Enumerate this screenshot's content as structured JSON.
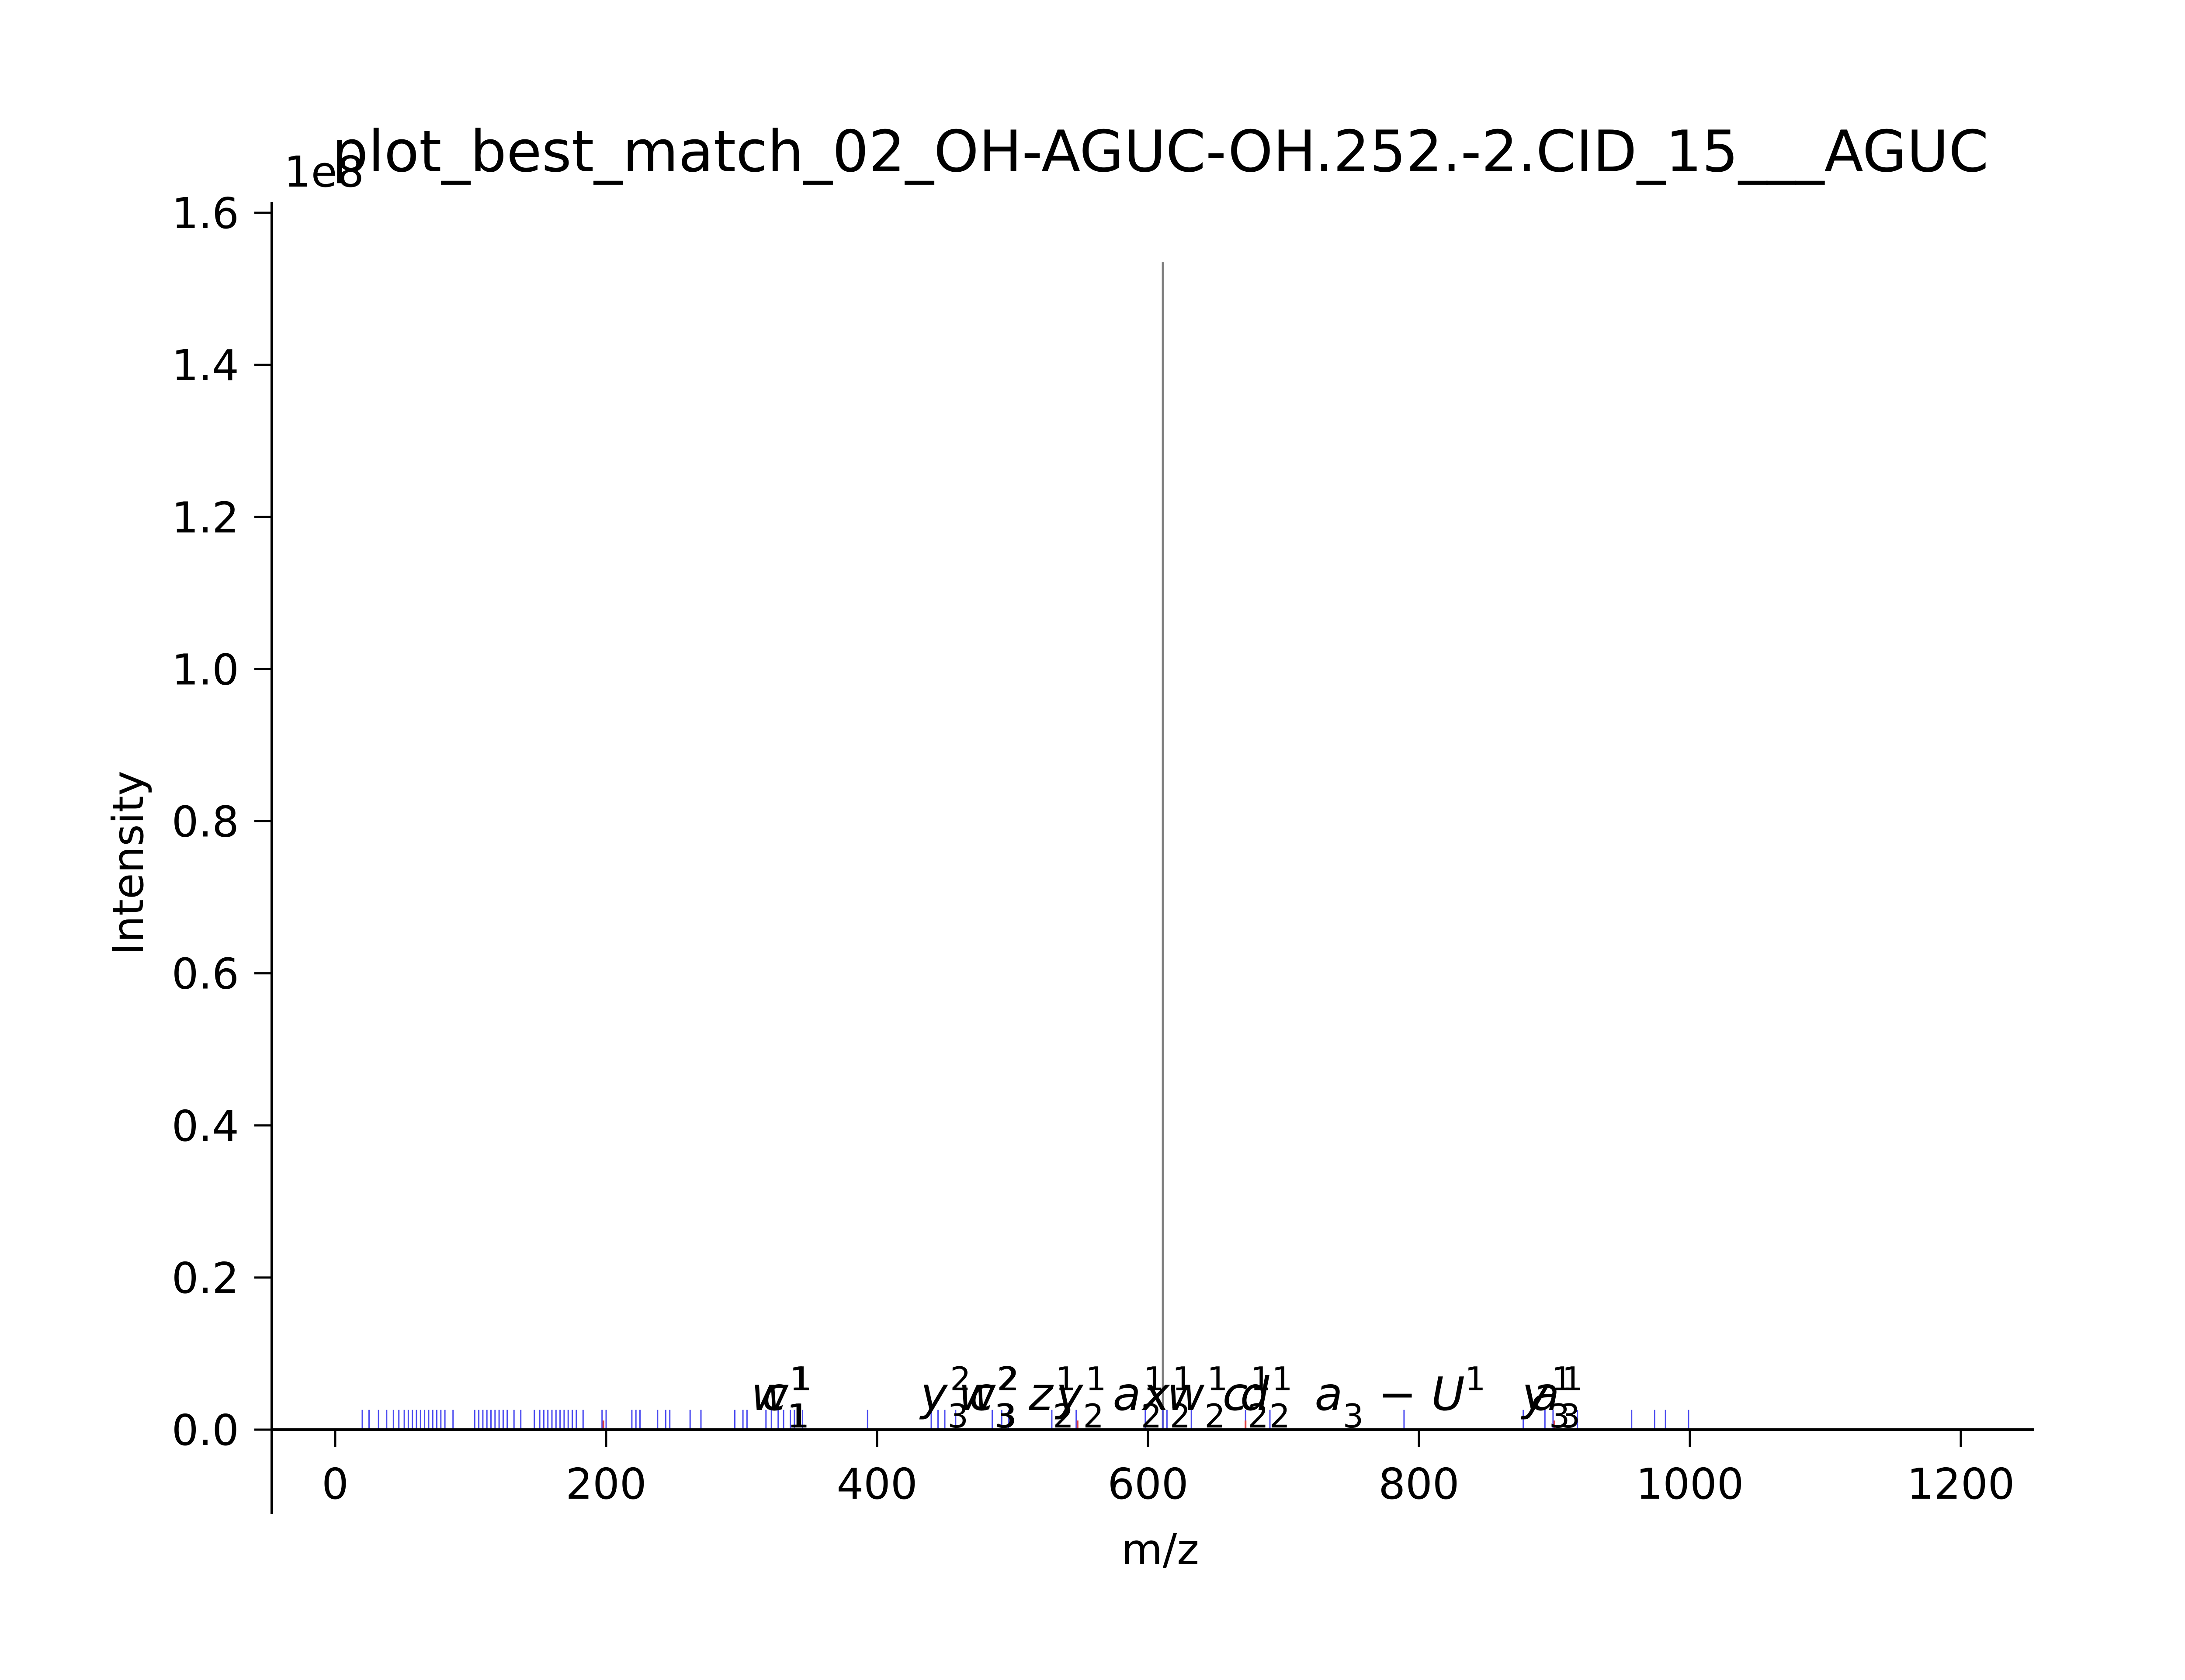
{
  "chart_data": {
    "type": "bar",
    "title": "plot_best_match_02_OH-AGUC-OH.252.-2.CID_15___AGUC",
    "xlabel": "m/z",
    "ylabel": "Intensity",
    "y_offset_label": "1e8",
    "xlim": [
      -50,
      1260
    ],
    "ylim": [
      0,
      1.6
    ],
    "x_ticks": [
      0,
      200,
      400,
      600,
      800,
      1000,
      1200
    ],
    "x_tick_labels": [
      "0",
      "200",
      "400",
      "600",
      "800",
      "1000",
      "1200"
    ],
    "y_ticks": [
      0.0,
      0.2,
      0.4,
      0.6,
      0.8,
      1.0,
      1.2,
      1.4,
      1.6
    ],
    "y_tick_labels": [
      "0.0",
      "0.2",
      "0.4",
      "0.6",
      "0.8",
      "1.0",
      "1.2",
      "1.4",
      "1.6"
    ],
    "grid": false,
    "colors": {
      "precursor": "#808080",
      "theoretical": "#4b4bf0",
      "matched": "#e03c3c",
      "axis": "#000000"
    },
    "series": [
      {
        "name": "",
        "kind": "observed-precursor",
        "x": [
          611.0
        ],
        "values": [
          1.535
        ]
      },
      {
        "name": "",
        "kind": "theoretical-fragments",
        "x": [
          20,
          25,
          32,
          38,
          43,
          47,
          51,
          54,
          57,
          60,
          63,
          66,
          69,
          72,
          75,
          78,
          81,
          87,
          103,
          106,
          109,
          112,
          115,
          118,
          121,
          124,
          127,
          132,
          137,
          147,
          151,
          154,
          157,
          160,
          163,
          166,
          169,
          172,
          175,
          178,
          183,
          197,
          200,
          219,
          222,
          225,
          238,
          244,
          247,
          262,
          270,
          295,
          301,
          304,
          318,
          322,
          327,
          331,
          336,
          339,
          345,
          393,
          440,
          445,
          450,
          458,
          485,
          492,
          497,
          529,
          547,
          598,
          611,
          614,
          632,
          672,
          690,
          789,
          877,
          893,
          899,
          917,
          957,
          974,
          982,
          999
        ],
        "values": [
          0.026,
          0.026,
          0.026,
          0.026,
          0.026,
          0.026,
          0.026,
          0.026,
          0.026,
          0.026,
          0.026,
          0.026,
          0.026,
          0.026,
          0.026,
          0.026,
          0.026,
          0.026,
          0.026,
          0.026,
          0.026,
          0.026,
          0.026,
          0.026,
          0.026,
          0.026,
          0.026,
          0.026,
          0.026,
          0.026,
          0.026,
          0.026,
          0.026,
          0.026,
          0.026,
          0.026,
          0.026,
          0.026,
          0.026,
          0.026,
          0.026,
          0.026,
          0.026,
          0.026,
          0.026,
          0.026,
          0.026,
          0.026,
          0.026,
          0.026,
          0.026,
          0.026,
          0.026,
          0.026,
          0.026,
          0.026,
          0.026,
          0.026,
          0.026,
          0.026,
          0.026,
          0.026,
          0.026,
          0.026,
          0.026,
          0.026,
          0.026,
          0.026,
          0.026,
          0.026,
          0.026,
          0.026,
          0.026,
          0.026,
          0.026,
          0.026,
          0.026,
          0.026,
          0.026,
          0.026,
          0.026,
          0.026,
          0.026,
          0.026,
          0.026,
          0.026
        ]
      },
      {
        "name": "",
        "kind": "matched-fragments",
        "x": [
          198,
          548,
          672,
          900
        ],
        "values": [
          0.012,
          0.012,
          0.012,
          0.012
        ]
      }
    ],
    "annotations": [
      {
        "x": 307,
        "y": 0.0,
        "base": "w",
        "sup": "1",
        "sub": "1"
      },
      {
        "x": 315,
        "y": 0.0,
        "base": "c",
        "sup": "1",
        "sub": "1"
      },
      {
        "x": 432,
        "y": 0.0,
        "base": "y",
        "sup": "2",
        "sub": "3"
      },
      {
        "x": 460,
        "y": 0.0,
        "base": "w",
        "sup": "2",
        "sub": "3"
      },
      {
        "x": 468,
        "y": 0.0,
        "base": "c",
        "sup": "2",
        "sub": "3"
      },
      {
        "x": 512,
        "y": 0.0,
        "base": "z",
        "sup": "1",
        "sub": "2"
      },
      {
        "x": 532,
        "y": 0.0,
        "base": "y",
        "sup": "1",
        "sub": "2"
      },
      {
        "x": 574,
        "y": 0.0,
        "base": "a",
        "sup": "1",
        "sub": "2"
      },
      {
        "x": 596,
        "y": 0.0,
        "base": "x",
        "sup": "1",
        "sub": "2"
      },
      {
        "x": 614,
        "y": 0.0,
        "base": "w",
        "sup": "1",
        "sub": "2"
      },
      {
        "x": 655,
        "y": 0.0,
        "base": "c",
        "sup": "1",
        "sub": "2"
      },
      {
        "x": 668,
        "y": 0.0,
        "base": "d",
        "sup": "1",
        "sub": "2"
      },
      {
        "x": 723,
        "y": 0.0,
        "base": "a",
        "sup": "1",
        "sub": "3",
        "suffix": " − U"
      },
      {
        "x": 876,
        "y": 0.0,
        "base": "y",
        "sup": "1",
        "sub": "3"
      },
      {
        "x": 883,
        "y": 0.0,
        "base": "a",
        "sup": "1",
        "sub": "3"
      }
    ]
  }
}
